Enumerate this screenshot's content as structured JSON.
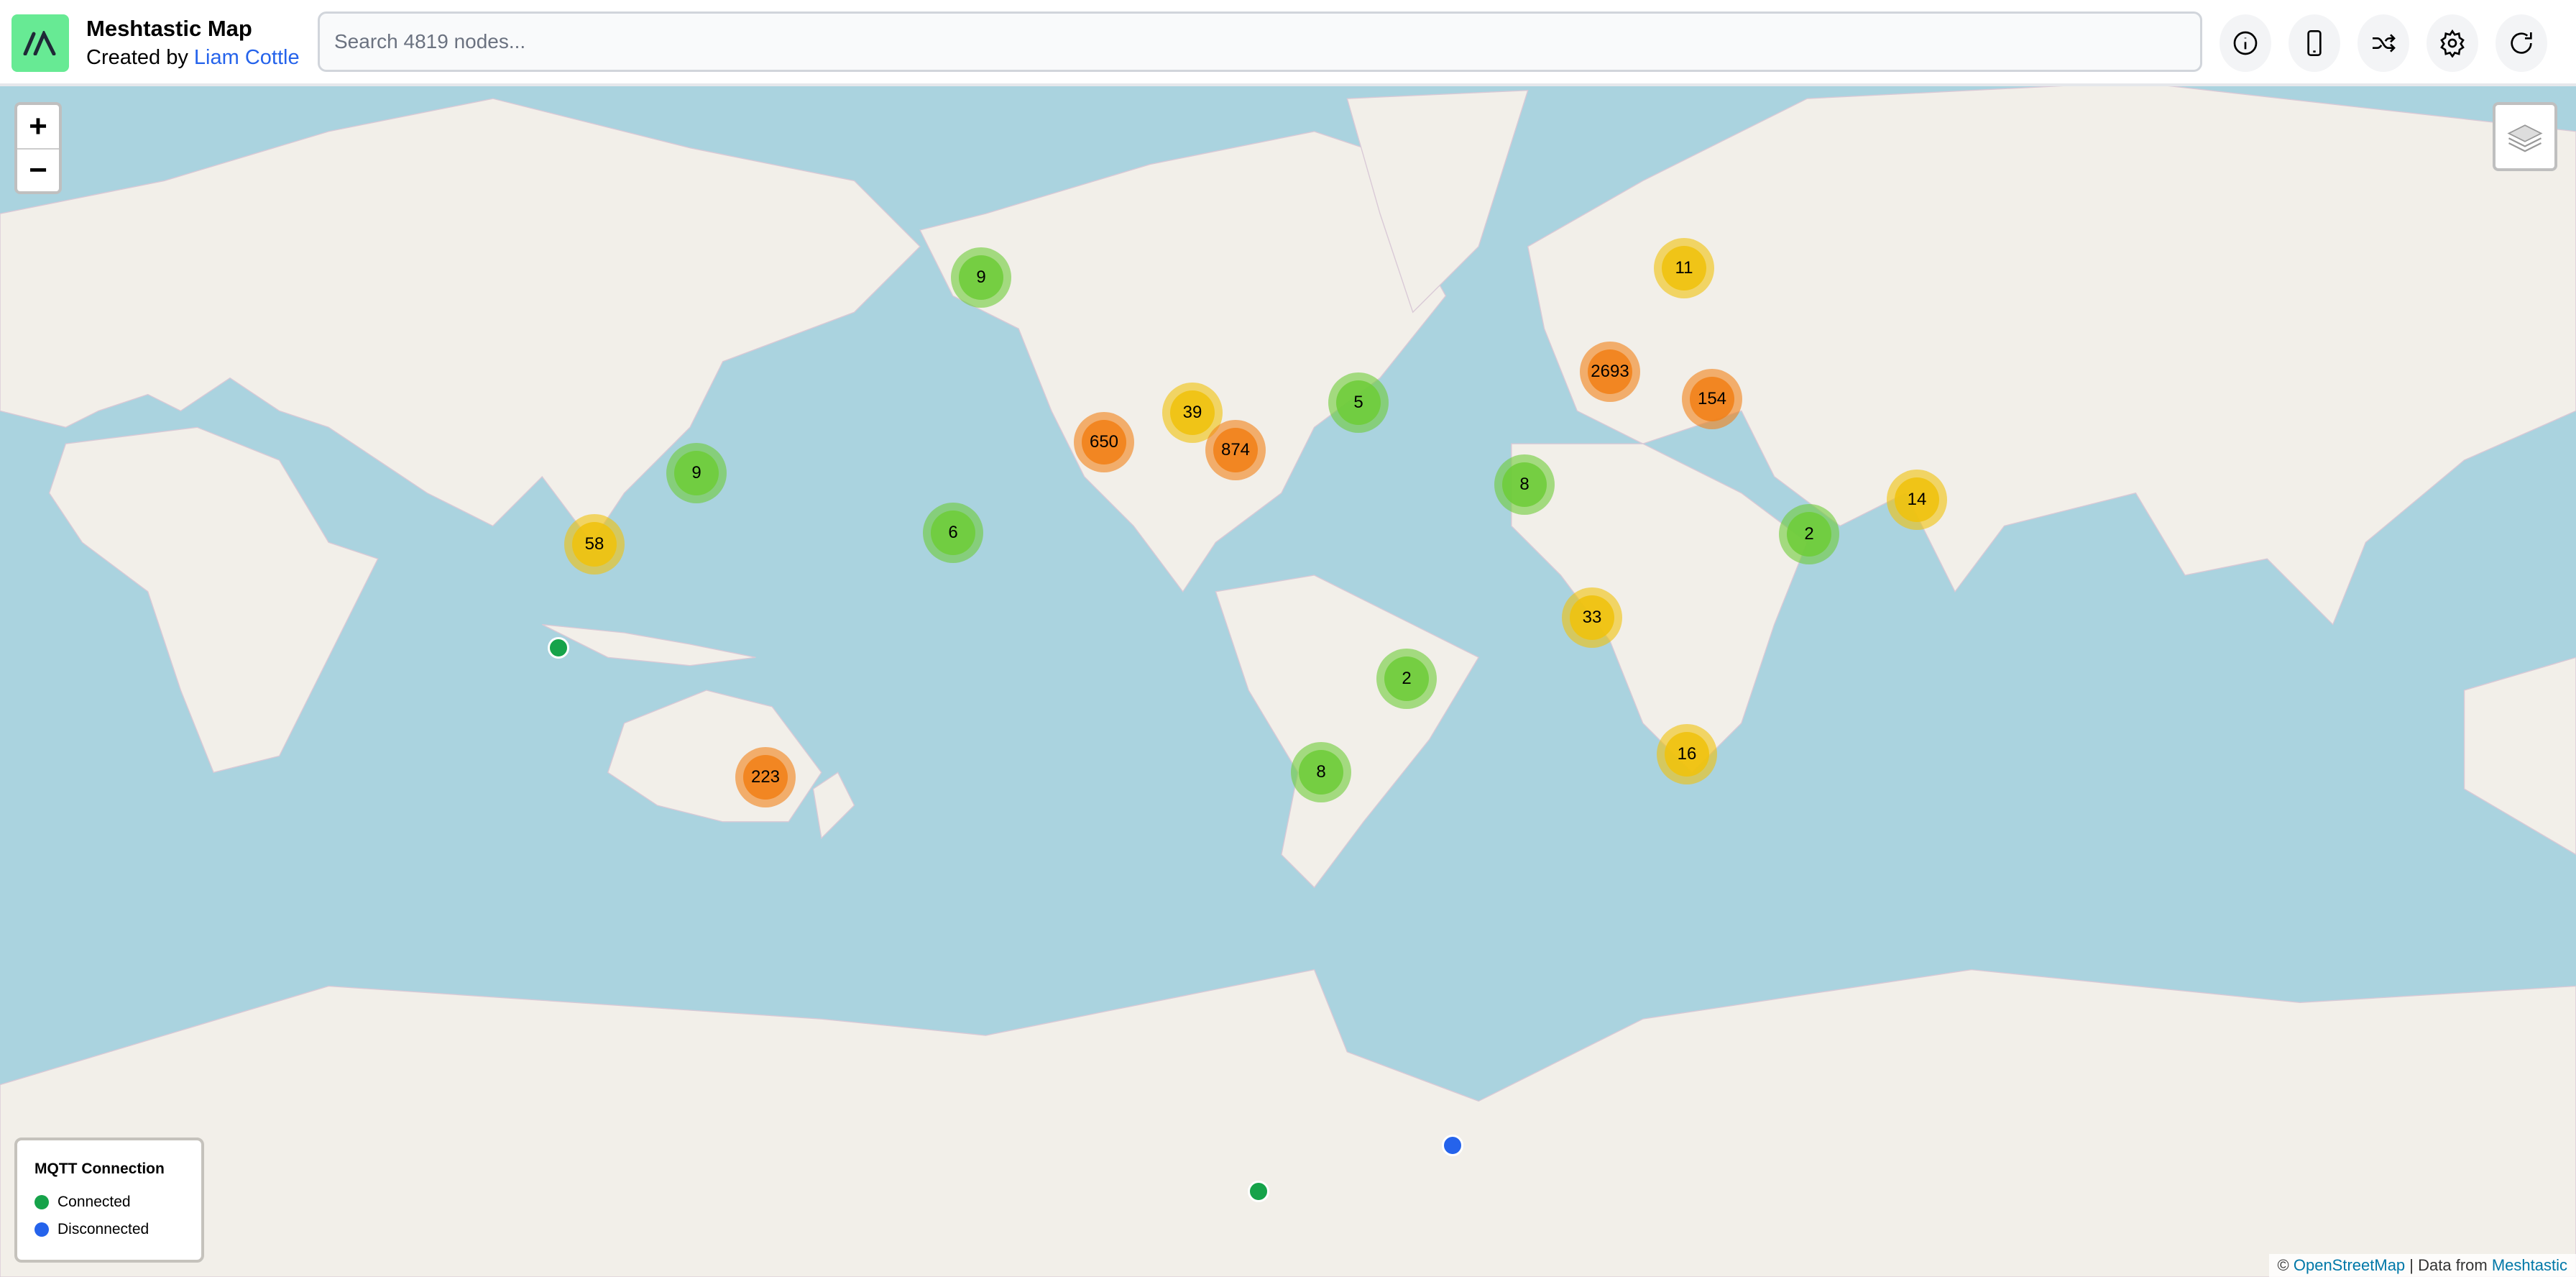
{
  "header": {
    "title": "Meshtastic Map",
    "created_by": "Created by",
    "author": "Liam Cottle",
    "search_placeholder": "Search 4819 nodes...",
    "buttons": [
      {
        "icon": "info-icon"
      },
      {
        "icon": "phone-icon"
      },
      {
        "icon": "shuffle-icon"
      },
      {
        "icon": "gear-icon"
      },
      {
        "icon": "refresh-icon"
      }
    ]
  },
  "map": {
    "zoom_in": "+",
    "zoom_out": "−",
    "clusters": [
      {
        "count": "9",
        "level": "green"
      },
      {
        "count": "11",
        "level": "yellow"
      },
      {
        "count": "2693",
        "level": "orange"
      },
      {
        "count": "154",
        "level": "orange"
      },
      {
        "count": "5",
        "level": "green"
      },
      {
        "count": "39",
        "level": "yellow"
      },
      {
        "count": "650",
        "level": "orange"
      },
      {
        "count": "874",
        "level": "orange"
      },
      {
        "count": "9",
        "level": "green"
      },
      {
        "count": "8",
        "level": "green"
      },
      {
        "count": "14",
        "level": "yellow"
      },
      {
        "count": "2",
        "level": "green"
      },
      {
        "count": "58",
        "level": "yellow"
      },
      {
        "count": "6",
        "level": "green"
      },
      {
        "count": "33",
        "level": "yellow"
      },
      {
        "count": "2",
        "level": "green"
      },
      {
        "count": "223",
        "level": "orange"
      },
      {
        "count": "8",
        "level": "green"
      },
      {
        "count": "16",
        "level": "yellow"
      }
    ],
    "nodes": [
      {
        "status": "connected"
      },
      {
        "status": "disconnected"
      },
      {
        "status": "connected"
      }
    ]
  },
  "legend": {
    "title": "MQTT Connection",
    "items": [
      {
        "label": "Connected",
        "color": "#16a34a"
      },
      {
        "label": "Disconnected",
        "color": "#2563eb"
      }
    ]
  },
  "attribution": {
    "copyright": "©",
    "osm": "OpenStreetMap",
    "sep": "| Data from",
    "source": "Meshtastic"
  },
  "colors": {
    "green": "#6ecc39",
    "yellow": "#f0c20c",
    "orange": "#f18017",
    "water": "#aad3df",
    "land": "#f2efe9",
    "logo": "#67ea94"
  }
}
